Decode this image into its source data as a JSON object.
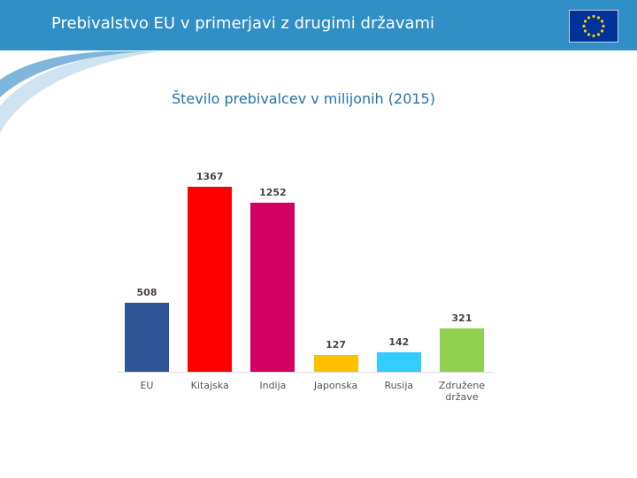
{
  "header": {
    "title": "Prebivalstvo EU v primerjavi z drugimi državami"
  },
  "chart_data": {
    "type": "bar",
    "title": "Število prebivalcev v milijonih (2015)",
    "categories": [
      "EU",
      "Kitajska",
      "Indija",
      "Japonska",
      "Rusija",
      "Združene države"
    ],
    "values": [
      508,
      1367,
      1252,
      127,
      142,
      321
    ],
    "colors": [
      "#2e5597",
      "#ff0000",
      "#d20060",
      "#ffc000",
      "#33ccff",
      "#92d050"
    ]
  }
}
